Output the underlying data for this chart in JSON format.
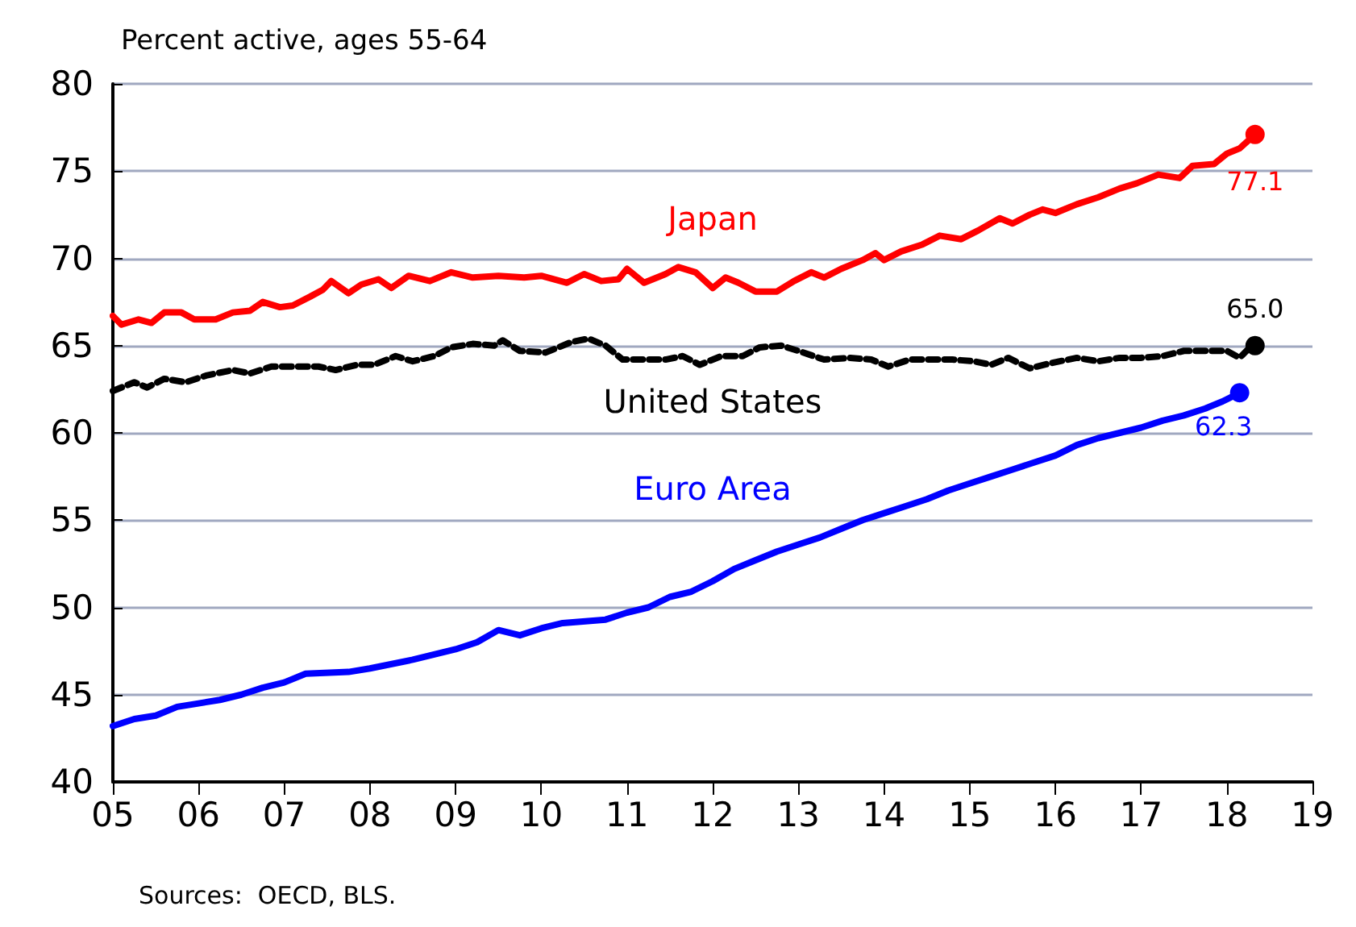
{
  "chart_data": {
    "type": "line",
    "title": "Percent active, ages 55-64",
    "annotations": [
      "Sources:  OECD, BLS."
    ],
    "xlim": [
      2005,
      2019
    ],
    "xticks": [
      {
        "value": 2005,
        "label": "05"
      },
      {
        "value": 2006,
        "label": "06"
      },
      {
        "value": 2007,
        "label": "07"
      },
      {
        "value": 2008,
        "label": "08"
      },
      {
        "value": 2009,
        "label": "09"
      },
      {
        "value": 2010,
        "label": "10"
      },
      {
        "value": 2011,
        "label": "11"
      },
      {
        "value": 2012,
        "label": "12"
      },
      {
        "value": 2013,
        "label": "13"
      },
      {
        "value": 2014,
        "label": "14"
      },
      {
        "value": 2015,
        "label": "15"
      },
      {
        "value": 2016,
        "label": "16"
      },
      {
        "value": 2017,
        "label": "17"
      },
      {
        "value": 2018,
        "label": "18"
      },
      {
        "value": 2019,
        "label": "19"
      }
    ],
    "ylim": [
      40,
      80
    ],
    "yticks": [
      40,
      45,
      50,
      55,
      60,
      65,
      70,
      75,
      80
    ],
    "grid": "y",
    "legend": false,
    "marker": "none",
    "series": [
      {
        "name": "Japan",
        "color": "#ff0000",
        "line_style": "solid",
        "x": [
          2005.0,
          2005.1,
          2005.3,
          2005.45,
          2005.6,
          2005.8,
          2005.95,
          2006.2,
          2006.4,
          2006.6,
          2006.75,
          2006.95,
          2007.1,
          2007.3,
          2007.45,
          2007.55,
          2007.75,
          2007.9,
          2008.1,
          2008.25,
          2008.45,
          2008.7,
          2008.95,
          2009.2,
          2009.5,
          2009.8,
          2010.0,
          2010.3,
          2010.5,
          2010.7,
          2010.9,
          2011.0,
          2011.2,
          2011.45,
          2011.6,
          2011.8,
          2012.0,
          2012.15,
          2012.3,
          2012.5,
          2012.75,
          2012.95,
          2013.15,
          2013.3,
          2013.5,
          2013.75,
          2013.9,
          2014.0,
          2014.2,
          2014.45,
          2014.65,
          2014.9,
          2015.1,
          2015.35,
          2015.5,
          2015.7,
          2015.85,
          2016.0,
          2016.25,
          2016.5,
          2016.75,
          2016.95,
          2017.2,
          2017.45,
          2017.6,
          2017.85,
          2018.0,
          2018.15,
          2018.33
        ],
        "values": [
          66.7,
          66.2,
          66.5,
          66.3,
          66.9,
          66.9,
          66.5,
          66.5,
          66.9,
          67.0,
          67.5,
          67.2,
          67.3,
          67.8,
          68.2,
          68.7,
          68.0,
          68.5,
          68.8,
          68.3,
          69.0,
          68.7,
          69.2,
          68.9,
          69.0,
          68.9,
          69.0,
          68.6,
          69.1,
          68.7,
          68.8,
          69.4,
          68.6,
          69.1,
          69.5,
          69.2,
          68.3,
          68.9,
          68.6,
          68.1,
          68.1,
          68.7,
          69.2,
          68.9,
          69.4,
          69.9,
          70.3,
          69.9,
          70.4,
          70.8,
          71.3,
          71.1,
          71.6,
          72.3,
          72.0,
          72.5,
          72.8,
          72.6,
          73.1,
          73.5,
          74.0,
          74.3,
          74.8,
          74.6,
          75.3,
          75.4,
          76.0,
          76.3,
          77.1
        ],
        "value_labels": [
          null,
          null,
          null,
          null,
          null,
          null,
          null,
          null,
          null,
          null,
          null,
          null,
          null,
          null,
          null,
          null,
          null,
          null,
          null,
          null,
          null,
          null,
          null,
          null,
          null,
          null,
          null,
          null,
          null,
          null,
          null,
          null,
          null,
          null,
          null,
          null,
          null,
          null,
          null,
          null,
          null,
          null,
          null,
          null,
          null,
          null,
          null,
          null,
          null,
          null,
          null,
          null,
          null,
          null,
          null,
          null,
          null,
          null,
          null,
          null,
          null,
          null,
          null,
          null,
          null,
          null,
          null,
          null,
          "77.1"
        ]
      },
      {
        "name": "United States",
        "color": "#000000",
        "line_style": "dashed",
        "x": [
          2005.0,
          2005.25,
          2005.4,
          2005.6,
          2005.85,
          2006.1,
          2006.4,
          2006.6,
          2006.85,
          2007.1,
          2007.4,
          2007.6,
          2007.85,
          2008.05,
          2008.3,
          2008.5,
          2008.75,
          2008.95,
          2009.2,
          2009.45,
          2009.55,
          2009.75,
          2010.05,
          2010.35,
          2010.55,
          2010.75,
          2010.95,
          2011.2,
          2011.45,
          2011.65,
          2011.85,
          2012.1,
          2012.35,
          2012.55,
          2012.8,
          2013.0,
          2013.3,
          2013.6,
          2013.85,
          2014.05,
          2014.3,
          2014.55,
          2014.8,
          2015.05,
          2015.25,
          2015.45,
          2015.7,
          2015.95,
          2016.25,
          2016.5,
          2016.75,
          2017.0,
          2017.25,
          2017.5,
          2017.75,
          2018.0,
          2018.15,
          2018.25,
          2018.33
        ],
        "values": [
          62.4,
          62.9,
          62.6,
          63.1,
          62.9,
          63.3,
          63.6,
          63.4,
          63.8,
          63.8,
          63.8,
          63.6,
          63.9,
          63.9,
          64.4,
          64.1,
          64.4,
          64.9,
          65.1,
          65.0,
          65.3,
          64.7,
          64.6,
          65.2,
          65.4,
          65.0,
          64.2,
          64.2,
          64.2,
          64.4,
          63.9,
          64.4,
          64.4,
          64.9,
          65.0,
          64.7,
          64.2,
          64.3,
          64.2,
          63.8,
          64.2,
          64.2,
          64.2,
          64.1,
          63.9,
          64.3,
          63.7,
          64.0,
          64.3,
          64.1,
          64.3,
          64.3,
          64.4,
          64.7,
          64.7,
          64.7,
          64.3,
          64.8,
          65.0
        ],
        "value_labels": [
          null,
          null,
          null,
          null,
          null,
          null,
          null,
          null,
          null,
          null,
          null,
          null,
          null,
          null,
          null,
          null,
          null,
          null,
          null,
          null,
          null,
          null,
          null,
          null,
          null,
          null,
          null,
          null,
          null,
          null,
          null,
          null,
          null,
          null,
          null,
          null,
          null,
          null,
          null,
          null,
          null,
          null,
          null,
          null,
          null,
          null,
          null,
          null,
          null,
          null,
          null,
          null,
          null,
          null,
          null,
          null,
          null,
          null,
          "65.0"
        ]
      },
      {
        "name": "Euro Area",
        "color": "#0000ff",
        "line_style": "solid",
        "x": [
          2005.0,
          2005.25,
          2005.5,
          2005.75,
          2006.0,
          2006.25,
          2006.5,
          2006.75,
          2007.0,
          2007.25,
          2007.75,
          2008.0,
          2008.5,
          2008.75,
          2009.0,
          2009.25,
          2009.5,
          2009.75,
          2010.0,
          2010.25,
          2010.75,
          2011.0,
          2011.25,
          2011.5,
          2011.75,
          2012.0,
          2012.25,
          2012.5,
          2012.75,
          2013.0,
          2013.25,
          2013.5,
          2013.75,
          2014.0,
          2014.25,
          2014.5,
          2014.75,
          2015.0,
          2015.25,
          2015.5,
          2015.75,
          2016.0,
          2016.25,
          2016.5,
          2016.75,
          2017.0,
          2017.25,
          2017.5,
          2017.75,
          2017.95,
          2018.15
        ],
        "values": [
          43.2,
          43.6,
          43.8,
          44.3,
          44.5,
          44.7,
          45.0,
          45.4,
          45.7,
          46.2,
          46.3,
          46.5,
          47.0,
          47.3,
          47.6,
          48.0,
          48.7,
          48.4,
          48.8,
          49.1,
          49.3,
          49.7,
          50.0,
          50.6,
          50.9,
          51.5,
          52.2,
          52.7,
          53.2,
          53.6,
          54.0,
          54.5,
          55.0,
          55.4,
          55.8,
          56.2,
          56.7,
          57.1,
          57.5,
          57.9,
          58.3,
          58.7,
          59.3,
          59.7,
          60.0,
          60.3,
          60.7,
          61.0,
          61.4,
          61.8,
          62.3
        ],
        "value_labels": [
          null,
          null,
          null,
          null,
          null,
          null,
          null,
          null,
          null,
          null,
          null,
          null,
          null,
          null,
          null,
          null,
          null,
          null,
          null,
          null,
          null,
          null,
          null,
          null,
          null,
          null,
          null,
          null,
          null,
          null,
          null,
          null,
          null,
          null,
          null,
          null,
          null,
          null,
          null,
          null,
          null,
          null,
          null,
          null,
          null,
          null,
          null,
          null,
          null,
          null,
          "62.3"
        ]
      }
    ]
  }
}
